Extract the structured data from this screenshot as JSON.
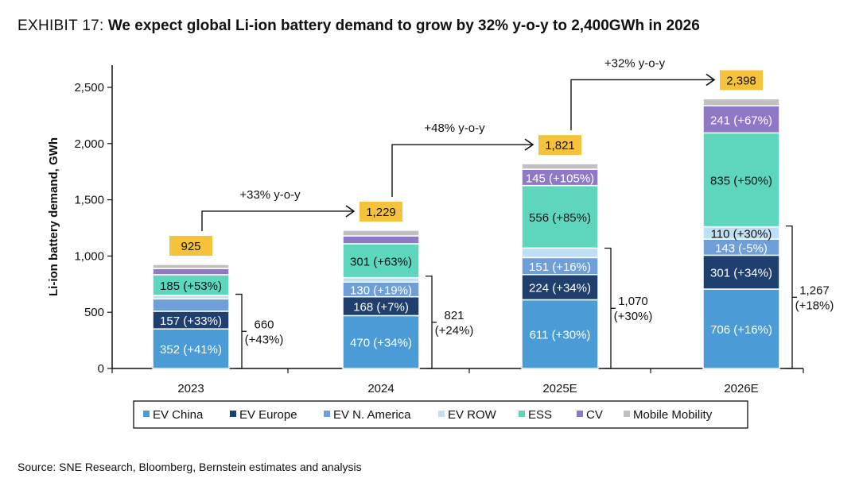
{
  "title": {
    "exhibit": "EXHIBIT 17:",
    "headline": "We expect global Li-ion battery demand to grow by 32% y-o-y to 2,400GWh in 2026"
  },
  "source": "Source: SNE Research, Bloomberg, Bernstein estimates and analysis",
  "colors": {
    "EV China": "#4a9bd6",
    "EV Europe": "#1f3f6e",
    "EV N. America": "#6e9fd8",
    "EV ROW": "#bfe0f4",
    "ESS": "#5ed6be",
    "CV": "#8f78c6",
    "Mobile Mobility": "#c0c0c0",
    "total_box": "#f5c33b"
  },
  "chart_data": {
    "type": "bar",
    "stacked": true,
    "ylabel": "Li-ion battery demand, GWh",
    "xlabel": "",
    "ylim": [
      0,
      2750
    ],
    "yticks": [
      0,
      500,
      1000,
      1500,
      2000,
      2500
    ],
    "ytick_labels": [
      "0",
      "500",
      "1,000",
      "1,500",
      "2,000",
      "2,500"
    ],
    "categories": [
      "2023",
      "2024",
      "2025E",
      "2026E"
    ],
    "series": [
      {
        "name": "EV China",
        "values": [
          352,
          470,
          611,
          706
        ],
        "labels": [
          "352 (+41%)",
          "470 (+34%)",
          "611 (+30%)",
          "706 (+16%)"
        ]
      },
      {
        "name": "EV Europe",
        "values": [
          157,
          168,
          224,
          301
        ],
        "labels": [
          "157 (+33%)",
          "168 (+7%)",
          "224 (+34%)",
          "301 (+34%)"
        ]
      },
      {
        "name": "EV N. America",
        "values": [
          110,
          130,
          151,
          143
        ],
        "labels": [
          "",
          "130 (+19%)",
          "151 (+16%)",
          "143 (-5%)"
        ]
      },
      {
        "name": "EV ROW",
        "values": [
          30,
          40,
          85,
          110
        ],
        "labels": [
          "",
          "",
          "",
          "110 (+30%)"
        ]
      },
      {
        "name": "ESS",
        "values": [
          185,
          301,
          556,
          835
        ],
        "labels": [
          "185 (+53%)",
          "301 (+63%)",
          "556 (+85%)",
          "835 (+50%)"
        ]
      },
      {
        "name": "CV",
        "values": [
          55,
          70,
          145,
          241
        ],
        "labels": [
          "",
          "",
          "145 (+105%)",
          "241 (+67%)"
        ]
      },
      {
        "name": "Mobile Mobility",
        "values": [
          36,
          50,
          49,
          62
        ],
        "labels": [
          "",
          "",
          "",
          ""
        ]
      }
    ],
    "totals": [
      925,
      1229,
      1821,
      2398
    ],
    "total_labels": [
      "925",
      "1,229",
      "1,821",
      "2,398"
    ],
    "ev_brackets": [
      {
        "value": 660,
        "line1": "660",
        "line2": "(+43%)"
      },
      {
        "value": 821,
        "line1": "821",
        "line2": "(+24%)"
      },
      {
        "value": 1070,
        "line1": "1,070",
        "line2": "(+30%)"
      },
      {
        "value": 1267,
        "line1": "1,267",
        "line2": "(+18%)"
      }
    ],
    "growth_arrows": [
      {
        "from": 0,
        "to": 1,
        "label": "+33% y-o-y"
      },
      {
        "from": 1,
        "to": 2,
        "label": "+48% y-o-y"
      },
      {
        "from": 2,
        "to": 3,
        "label": "+32% y-o-y"
      }
    ],
    "legend": {
      "placement": "bottom",
      "entries": [
        "EV China",
        "EV Europe",
        "EV N. America",
        "EV ROW",
        "ESS",
        "CV",
        "Mobile Mobility"
      ]
    }
  }
}
